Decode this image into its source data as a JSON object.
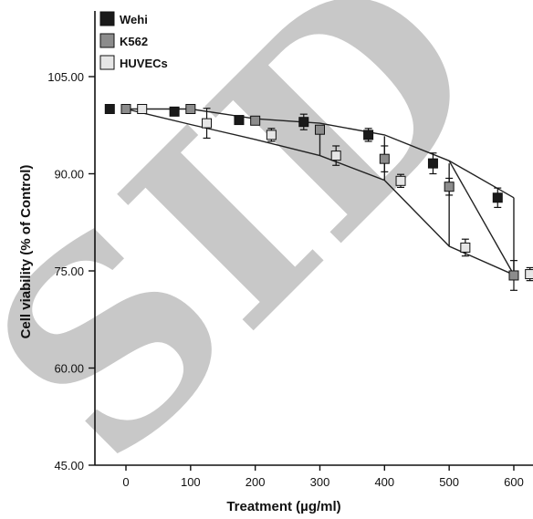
{
  "chart_data": {
    "type": "scatter",
    "title": "",
    "xlabel": "Treatment (µg/ml)",
    "ylabel": "Cell viability (% of Control)",
    "xlim": [
      -30,
      630
    ],
    "ylim": [
      45,
      117
    ],
    "x_ticks": [
      "0",
      "100",
      "200",
      "300",
      "400",
      "500",
      "600"
    ],
    "y_ticks": [
      "45.00",
      "60.00",
      "75.00",
      "90.00",
      "105.00"
    ],
    "watermark": "SID",
    "legend_position": "top-left",
    "series": [
      {
        "name": "Wehi",
        "fill": "#1a1a1a",
        "points": [
          {
            "x": -25,
            "y": 100.0,
            "err": 0
          },
          {
            "x": 75,
            "y": 99.6,
            "err": 0
          },
          {
            "x": 175,
            "y": 98.3,
            "err": 0
          },
          {
            "x": 275,
            "y": 98.0,
            "err": 1.2
          },
          {
            "x": 375,
            "y": 96.0,
            "err": 1.0
          },
          {
            "x": 475,
            "y": 91.6,
            "err": 1.6
          },
          {
            "x": 575,
            "y": 86.3,
            "err": 1.5
          }
        ]
      },
      {
        "name": "K562",
        "fill": "#8c8c8c",
        "points": [
          {
            "x": 0,
            "y": 100.0,
            "err": 0
          },
          {
            "x": 100,
            "y": 100.0,
            "err": 0
          },
          {
            "x": 200,
            "y": 98.2,
            "err": 0
          },
          {
            "x": 300,
            "y": 96.8,
            "err": 0
          },
          {
            "x": 400,
            "y": 92.3,
            "err": 2.0
          },
          {
            "x": 500,
            "y": 88.0,
            "err": 1.3
          },
          {
            "x": 600,
            "y": 74.3,
            "err": 2.3
          }
        ]
      },
      {
        "name": "HUVECs",
        "fill": "#e6e6e6",
        "points": [
          {
            "x": 25,
            "y": 100.0,
            "err": 0
          },
          {
            "x": 125,
            "y": 97.8,
            "err": 2.3
          },
          {
            "x": 225,
            "y": 96.0,
            "err": 1.0
          },
          {
            "x": 325,
            "y": 92.8,
            "err": 1.5
          },
          {
            "x": 425,
            "y": 88.9,
            "err": 1.0
          },
          {
            "x": 525,
            "y": 78.6,
            "err": 1.3
          },
          {
            "x": 625,
            "y": 74.5,
            "err": 1.0
          }
        ]
      }
    ],
    "envelope": {
      "upper": [
        [
          0,
          100.0
        ],
        [
          100,
          100.0
        ],
        [
          200,
          98.5
        ],
        [
          300,
          97.8
        ],
        [
          400,
          96.0
        ],
        [
          500,
          92.0
        ],
        [
          600,
          86.3
        ]
      ],
      "lower": [
        [
          0,
          100.0
        ],
        [
          100,
          97.6
        ],
        [
          200,
          95.3
        ],
        [
          300,
          92.8
        ],
        [
          400,
          89.0
        ],
        [
          500,
          78.8
        ],
        [
          600,
          74.4
        ]
      ],
      "verticals": [
        [
          300,
          97.5,
          92.8
        ],
        [
          400,
          95.8,
          89.0
        ],
        [
          500,
          91.6,
          78.8
        ]
      ]
    }
  }
}
